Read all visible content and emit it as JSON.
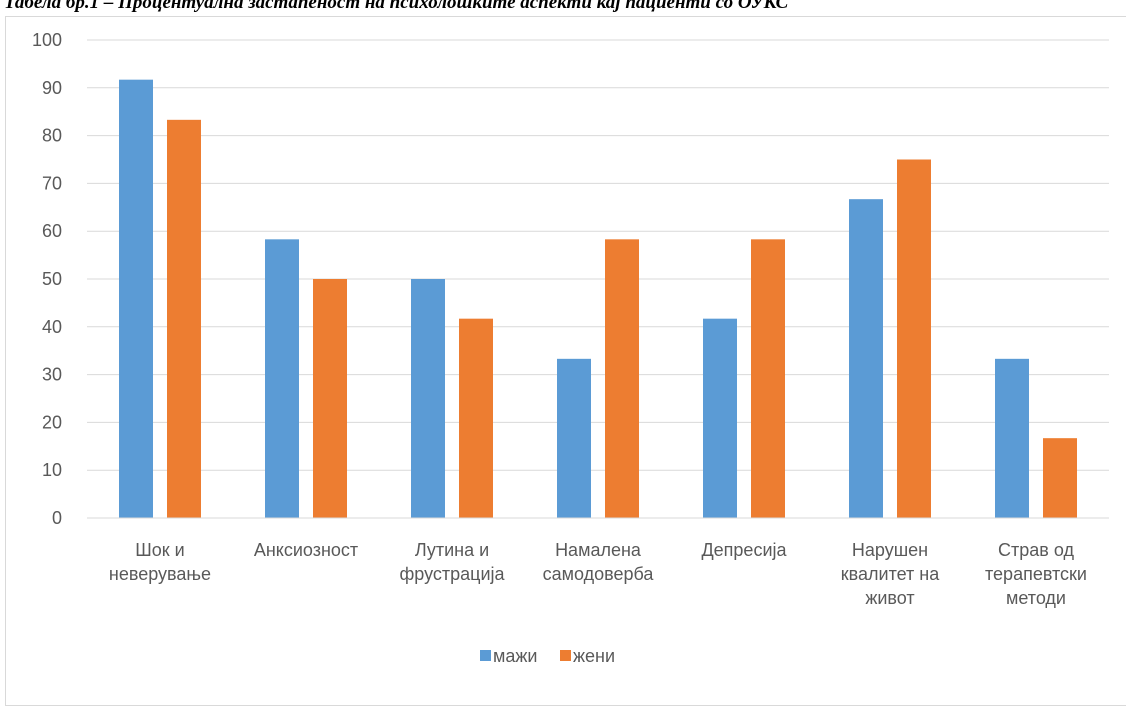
{
  "caption": "Табела бр.1 – Процентуална застапеност на психолошките аспекти кај пациенти со ОУКС",
  "chart_data": {
    "type": "bar",
    "title": "",
    "xlabel": "",
    "ylabel": "",
    "ylim": [
      0,
      100
    ],
    "yticks": [
      0,
      10,
      20,
      30,
      40,
      50,
      60,
      70,
      80,
      90,
      100
    ],
    "grid": true,
    "legend_position": "bottom",
    "categories": [
      [
        "Шок и",
        "неверување"
      ],
      [
        "Анксиозност"
      ],
      [
        "Лутина и",
        "фрустрација"
      ],
      [
        "Намалена",
        "самодоверба"
      ],
      [
        "Депресија"
      ],
      [
        "Нарушен",
        "квалитет на",
        "живот"
      ],
      [
        "Страв од",
        "терапевтски",
        "методи"
      ]
    ],
    "series": [
      {
        "name": "мажи",
        "color": "#5b9bd5",
        "values": [
          91.7,
          58.3,
          50.0,
          33.3,
          41.7,
          66.7,
          33.3
        ]
      },
      {
        "name": "жени",
        "color": "#ed7d31",
        "values": [
          83.3,
          50.0,
          41.7,
          58.3,
          58.3,
          75.0,
          16.7
        ]
      }
    ]
  }
}
